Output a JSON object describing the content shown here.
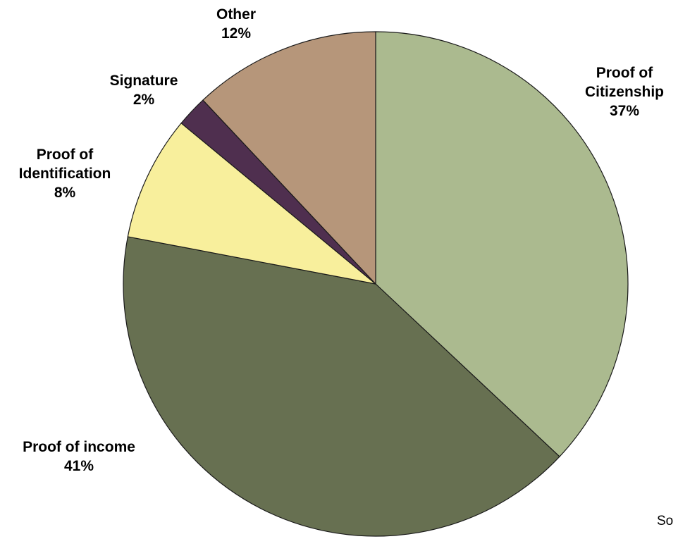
{
  "chart_data": {
    "type": "pie",
    "slices": [
      {
        "label": [
          "Proof of",
          "Citizenship"
        ],
        "percent_label": "37%",
        "value": 37,
        "color": "#abba8f"
      },
      {
        "label": [
          "Proof of income"
        ],
        "percent_label": "41%",
        "value": 41,
        "color": "#677051"
      },
      {
        "label": [
          "Proof of",
          "Identification"
        ],
        "percent_label": "8%",
        "value": 8,
        "color": "#f8ef9c"
      },
      {
        "label": [
          "Signature"
        ],
        "percent_label": "2%",
        "value": 2,
        "color": "#4f2f4f"
      },
      {
        "label": [
          "Other"
        ],
        "percent_label": "12%",
        "value": 12,
        "color": "#b6967a"
      }
    ],
    "start_angle": "12 o'clock",
    "direction": "clockwise",
    "legend": "none",
    "footer_text_fragment": "So"
  }
}
